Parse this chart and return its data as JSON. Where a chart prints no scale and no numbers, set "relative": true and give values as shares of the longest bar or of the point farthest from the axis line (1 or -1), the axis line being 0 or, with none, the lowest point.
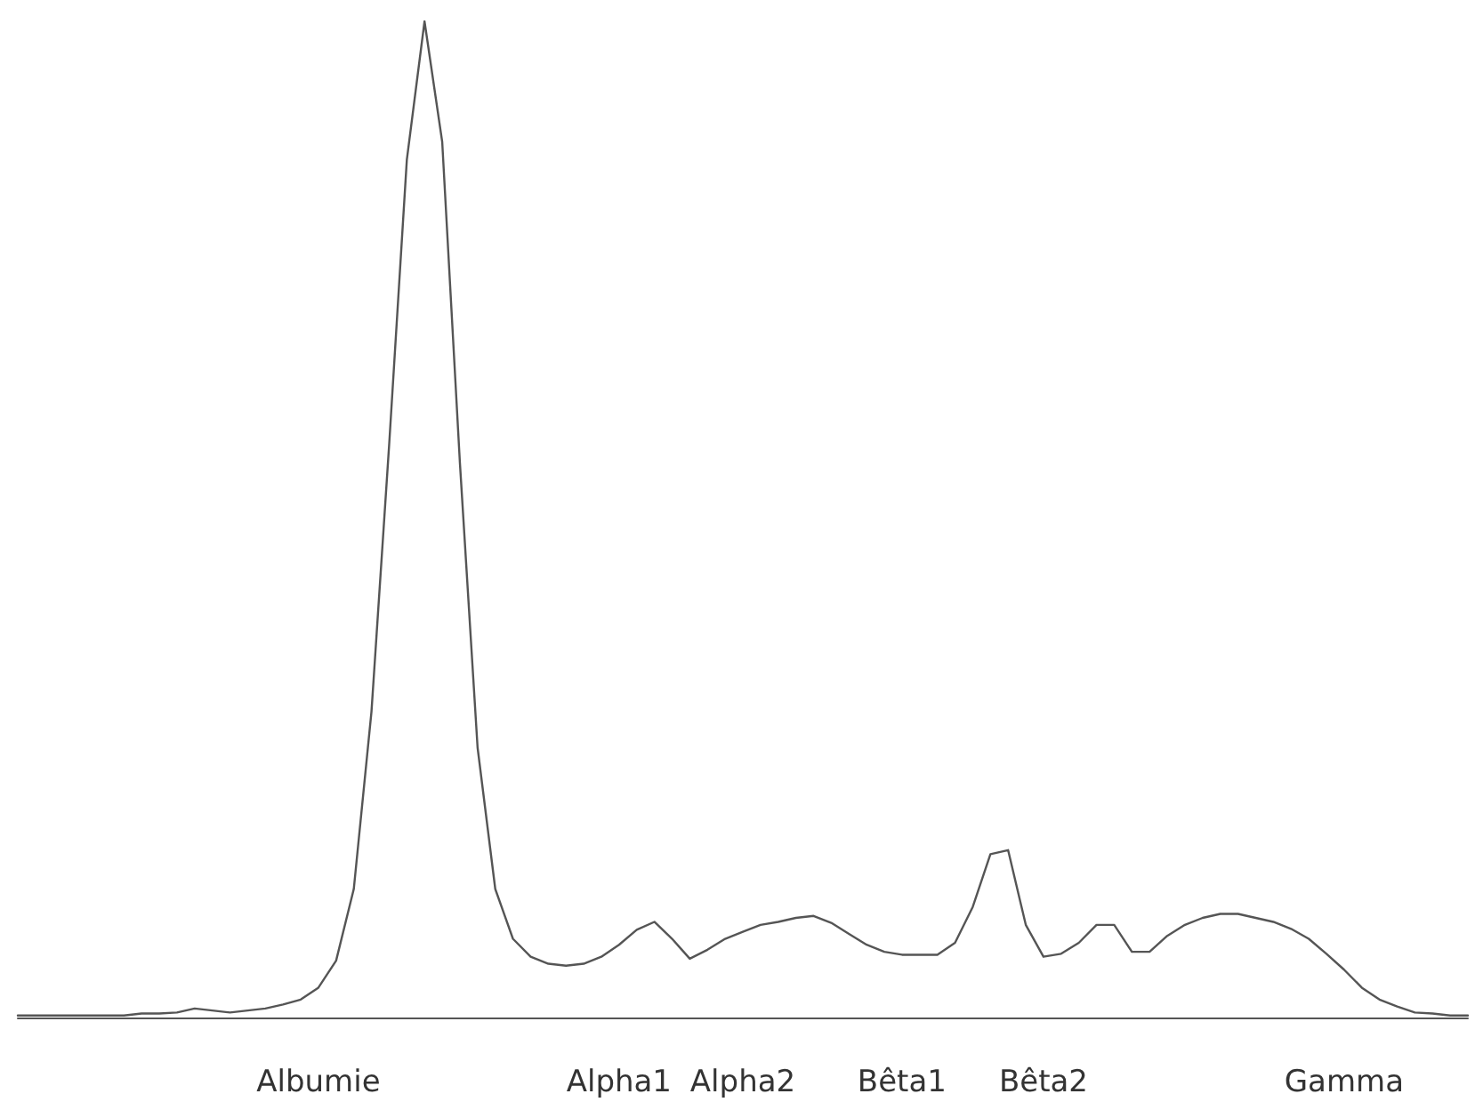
{
  "chart_data": {
    "type": "line",
    "relative": true,
    "marker": "none",
    "line_style": "solid",
    "categories": [
      null,
      null,
      null,
      null,
      null,
      null,
      null,
      null,
      null,
      null,
      null,
      null,
      null,
      null,
      null,
      null,
      null,
      "Albumie",
      null,
      null,
      null,
      null,
      null,
      null,
      null,
      null,
      null,
      null,
      null,
      null,
      null,
      null,
      null,
      null,
      "Alpha1",
      null,
      null,
      null,
      null,
      null,
      null,
      "Alpha2",
      null,
      null,
      null,
      null,
      null,
      null,
      null,
      null,
      "Bêta1",
      null,
      null,
      null,
      null,
      null,
      null,
      null,
      "Bêta2",
      null,
      null,
      null,
      null,
      null,
      null,
      null,
      null,
      null,
      null,
      null,
      null,
      null,
      null,
      null,
      null,
      "Gamma",
      null,
      null,
      null,
      null,
      null,
      null,
      null
    ],
    "series": [
      {
        "color": "#555555",
        "values": [
          0.002,
          0.002,
          0.002,
          0.002,
          0.002,
          0.002,
          0.002,
          0.004,
          0.004,
          0.005,
          0.009,
          0.007,
          0.005,
          0.007,
          0.009,
          0.013,
          0.018,
          0.03,
          0.057,
          0.129,
          0.307,
          0.575,
          0.861,
          1,
          0.879,
          0.557,
          0.271,
          0.129,
          0.079,
          0.061,
          0.054,
          0.052,
          0.054,
          0.061,
          0.073,
          0.088,
          0.096,
          0.079,
          0.059,
          0.068,
          0.079,
          0.086,
          0.093,
          0.096,
          0.1,
          0.102,
          0.095,
          0.084,
          0.073,
          0.066,
          0.063,
          0.063,
          0.063,
          0.075,
          0.111,
          0.164,
          0.168,
          0.093,
          0.061,
          0.064,
          0.075,
          0.093,
          0.093,
          0.066,
          0.066,
          0.082,
          0.093,
          0.1,
          0.104,
          0.104,
          0.1,
          0.096,
          0.089,
          0.079,
          0.064,
          0.048,
          0.03,
          0.018,
          0.011,
          0.005,
          0.004,
          0.002,
          0.002
        ]
      }
    ]
  }
}
